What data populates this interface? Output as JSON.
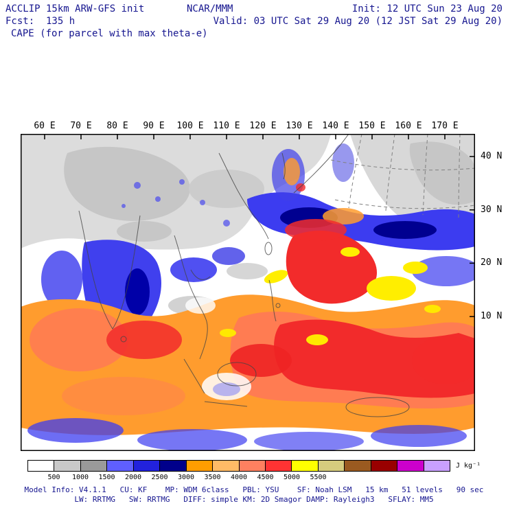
{
  "header": {
    "model": "ACCLIP 15km ARW-GFS init",
    "center": "NCAR/MMM",
    "init": "Init: 12 UTC Sun 23 Aug 20",
    "fcst": "Fcst:  135 h",
    "valid": "Valid: 03 UTC Sat 29 Aug 20 (12 JST Sat 29 Aug 20)",
    "field": "CAPE (for parcel with max theta-e)"
  },
  "axes": {
    "top_labels": [
      "60 E",
      "70 E",
      "80 E",
      "90 E",
      "100 E",
      "110 E",
      "120 E",
      "130 E",
      "140 E",
      "150 E",
      "160 E",
      "170 E"
    ],
    "right_labels": [
      "40 N",
      "30 N",
      "20 N",
      "10 N"
    ]
  },
  "colorbar": {
    "labels": [
      "500",
      "1000",
      "1500",
      "2000",
      "2500",
      "3000",
      "3500",
      "4000",
      "4500",
      "5000",
      "5500"
    ],
    "unit": "J kg⁻¹",
    "colors": [
      "#ffffff",
      "#c9c9c9",
      "#9a9a9a",
      "#5f5fff",
      "#2222dd",
      "#00008b",
      "#ff9d00",
      "#ffbb66",
      "#ff8060",
      "#ff3333",
      "#ffff00",
      "#d6cc7e",
      "#9a5a20",
      "#990000",
      "#cc00cc",
      "#c9a0ff"
    ]
  },
  "footer": {
    "line1": "Model Info: V4.1.1   CU: KF    MP: WDM 6class   PBL: YSU    SF: Noah LSM   15 km   51 levels   90 sec",
    "line2": "LW: RRTMG   SW: RRTMG   DIFF: simple KM: 2D Smagor DAMP: Rayleigh3   SFLAY: MM5"
  },
  "chart_data": {
    "type": "heatmap",
    "title": "CAPE (for parcel with max theta-e)",
    "units": "J kg-1",
    "x_ticks_deg_east": [
      60,
      70,
      80,
      90,
      100,
      110,
      120,
      130,
      140,
      150,
      160,
      170
    ],
    "y_ticks_deg_north": [
      40,
      30,
      20,
      10
    ],
    "contour_levels": [
      500,
      1000,
      1500,
      2000,
      2500,
      3000,
      3500,
      4000,
      4500,
      5000,
      5500
    ],
    "palette": [
      "#ffffff",
      "#c9c9c9",
      "#9a9a9a",
      "#5f5fff",
      "#2222dd",
      "#00008b",
      "#ff9d00",
      "#ffbb66",
      "#ff8060",
      "#ff3333",
      "#ffff00",
      "#d6cc7e",
      "#9a5a20",
      "#990000",
      "#cc00cc",
      "#c9a0ff"
    ],
    "legend_position": "bottom",
    "grid": "dashed graticule visible in northeast corner of domain",
    "features": [
      {
        "region": "Tibetan Plateau / interior Asia (60-110E, 25-42N)",
        "cape": "< 500 (gray shading)"
      },
      {
        "region": "Northwest Pacific north of ~30N (145-170E)",
        "cape": "< 500 (gray shading)"
      },
      {
        "region": "Seas around Japan / Kuroshio band (125-170E, 25-35N)",
        "cape": "500-2000 (blue shading)"
      },
      {
        "region": "India / Bay of Bengal (75-95E, 8-25N)",
        "cape": "500-2000 blue with embedded 2500-3500 orange/red cells"
      },
      {
        "region": "Arabian Sea (60-75E, 5-20N)",
        "cape": "2000-3500 (orange/salmon)"
      },
      {
        "region": "South China Sea / Philippine Sea / tropical W Pacific (110-170E, 0-25N)",
        "cape": "2500-3500 widespread (orange/red), cores 3500-4000 (yellow) near 150-160E 10-20N"
      },
      {
        "region": "Maritime Continent (95-130E, 10S-5N)",
        "cape": "mixed 500-3000 with suppressed white gaps"
      }
    ]
  }
}
